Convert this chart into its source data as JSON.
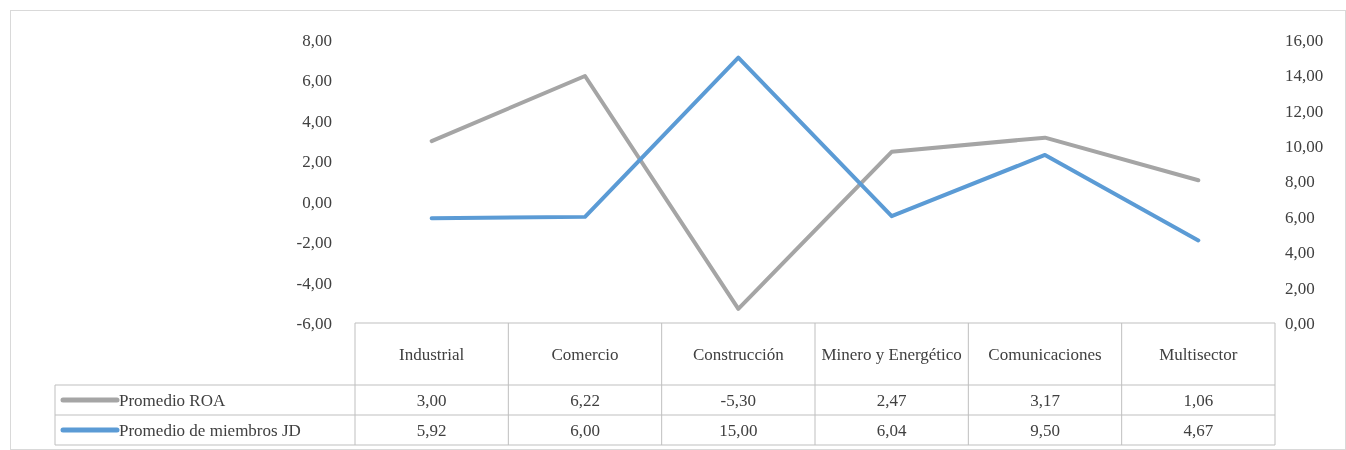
{
  "chart_data": {
    "type": "line",
    "categories": [
      "Industrial",
      "Comercio",
      "Construcción",
      "Minero y Energético",
      "Comunicaciones",
      "Multisector"
    ],
    "series": [
      {
        "name": "Promedio ROA",
        "color": "#a5a5a5",
        "values": [
          3.0,
          6.22,
          -5.3,
          2.47,
          3.17,
          1.06
        ],
        "value_labels": [
          "3,00",
          "6,22",
          "-5,30",
          "2,47",
          "3,17",
          "1,06"
        ]
      },
      {
        "name": "Promedio de miembros JD",
        "color": "#5b9bd5",
        "axis": "y2",
        "values": [
          5.92,
          6.0,
          15.0,
          6.04,
          9.5,
          4.67
        ],
        "value_labels": [
          "5,92",
          "6,00",
          "15,00",
          "6,04",
          "9,50",
          "4,67"
        ]
      }
    ],
    "ylim": [
      -6,
      8
    ],
    "yticks": [
      {
        "value": -6,
        "label": "-6,00"
      },
      {
        "value": -4,
        "label": "-4,00"
      },
      {
        "value": -2,
        "label": "-2,00"
      },
      {
        "value": 0,
        "label": "0,00"
      },
      {
        "value": 2,
        "label": "2,00"
      },
      {
        "value": 4,
        "label": "4,00"
      },
      {
        "value": 6,
        "label": "6,00"
      },
      {
        "value": 8,
        "label": "8,00"
      }
    ],
    "y2lim": [
      0,
      16
    ],
    "y2ticks": [
      {
        "value": 0,
        "label": "0,00"
      },
      {
        "value": 2,
        "label": "2,00"
      },
      {
        "value": 4,
        "label": "4,00"
      },
      {
        "value": 6,
        "label": "6,00"
      },
      {
        "value": 8,
        "label": "8,00"
      },
      {
        "value": 10,
        "label": "10,00"
      },
      {
        "value": 12,
        "label": "12,00"
      },
      {
        "value": 14,
        "label": "14,00"
      },
      {
        "value": 16,
        "label": "16,00"
      }
    ],
    "legend": "bottom",
    "marker": "none",
    "line_style": "solid",
    "grid": false
  }
}
